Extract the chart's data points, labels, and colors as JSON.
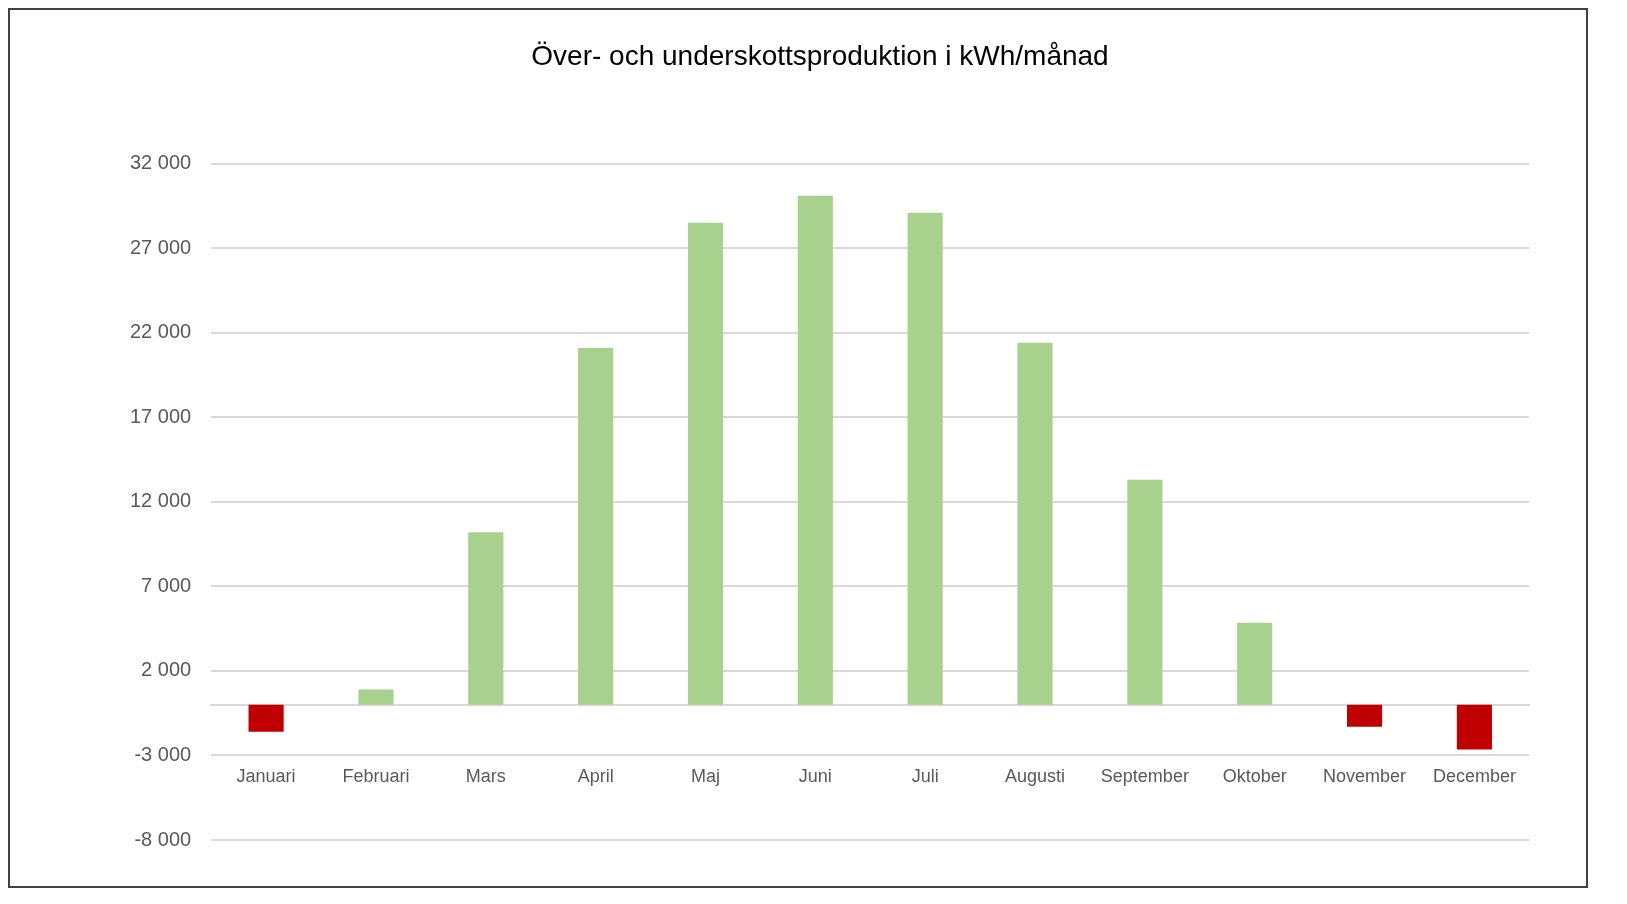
{
  "chart_data": {
    "type": "bar",
    "title": "Över- och underskottsproduktion i kWh/månad",
    "categories": [
      "Januari",
      "Februari",
      "Mars",
      "April",
      "Maj",
      "Juni",
      "Juli",
      "Augusti",
      "September",
      "Oktober",
      "November",
      "December"
    ],
    "values": [
      -1600,
      900,
      10200,
      21100,
      28500,
      30100,
      29100,
      21400,
      13300,
      4850,
      -1300,
      -2650
    ],
    "colors": [
      "#c00000",
      "#a9d18e",
      "#a9d18e",
      "#a9d18e",
      "#a9d18e",
      "#a9d18e",
      "#a9d18e",
      "#a9d18e",
      "#a9d18e",
      "#a9d18e",
      "#c00000",
      "#c00000"
    ],
    "ylim": [
      -8000,
      32000
    ],
    "yticks": [
      {
        "value": -8000,
        "label": "-8 000"
      },
      {
        "value": -3000,
        "label": "-3 000"
      },
      {
        "value": 2000,
        "label": "2 000"
      },
      {
        "value": 7000,
        "label": "7 000"
      },
      {
        "value": 12000,
        "label": "12 000"
      },
      {
        "value": 17000,
        "label": "17 000"
      },
      {
        "value": 22000,
        "label": "22 000"
      },
      {
        "value": 27000,
        "label": "27 000"
      },
      {
        "value": 32000,
        "label": "32 000"
      }
    ],
    "grid": "y",
    "legend": false
  }
}
